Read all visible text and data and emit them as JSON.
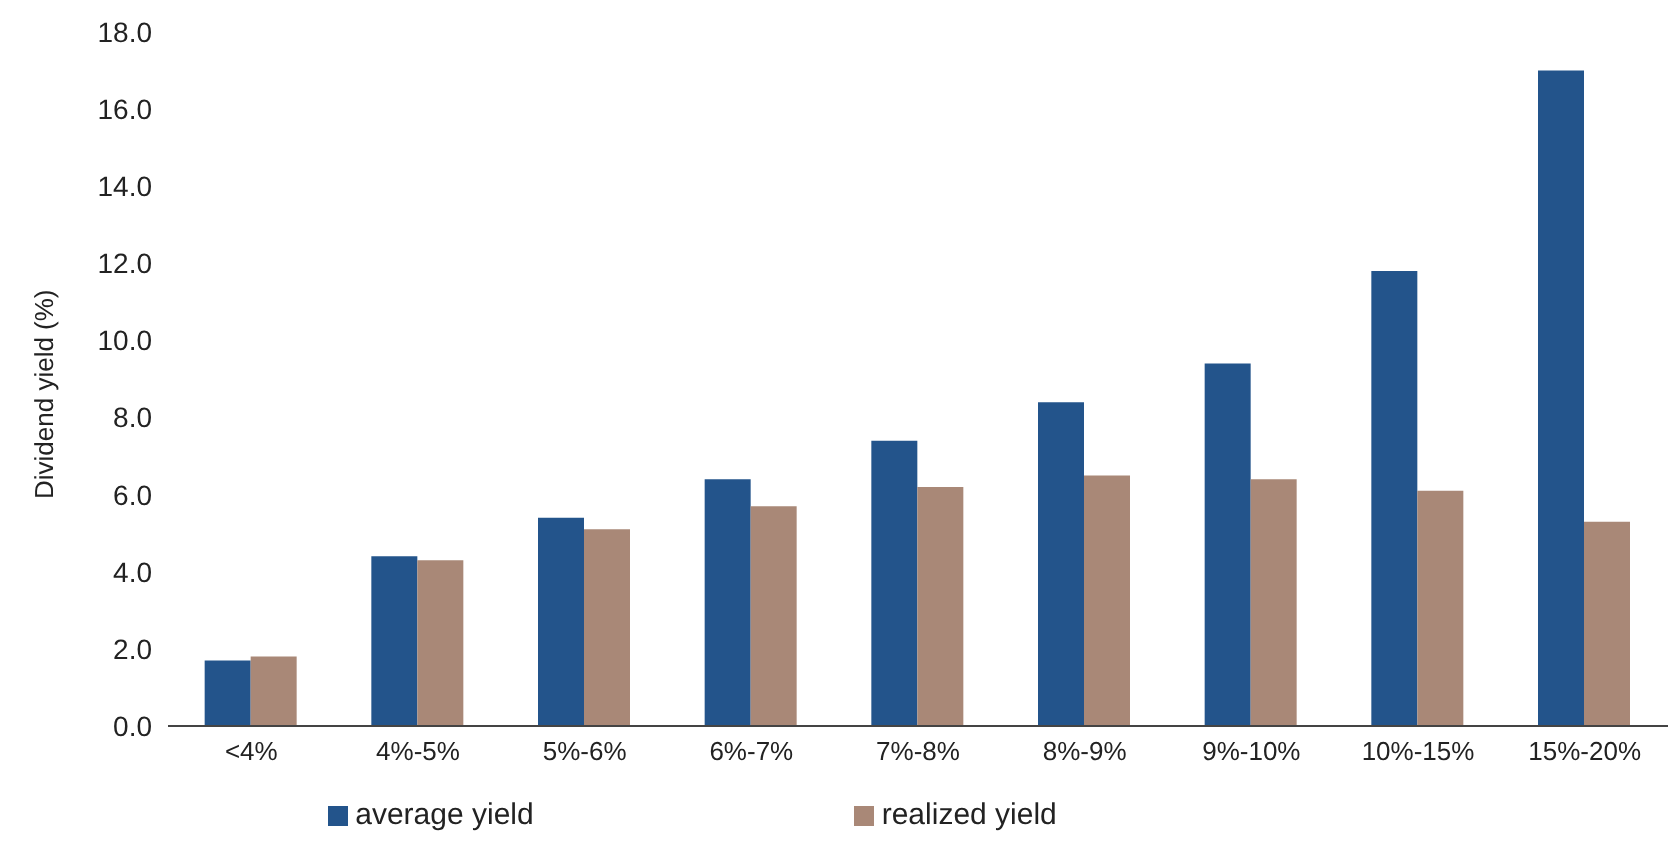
{
  "chart_data": {
    "type": "bar",
    "ylabel": "Dividend yield (%)",
    "categories": [
      "<4%",
      "4%-5%",
      "5%-6%",
      "6%-7%",
      "7%-8%",
      "8%-9%",
      "9%-10%",
      "10%-15%",
      "15%-20%"
    ],
    "series": [
      {
        "name": "average yield",
        "color": "#23548b",
        "values": [
          1.7,
          4.4,
          5.4,
          6.4,
          7.4,
          8.4,
          9.4,
          11.8,
          17.0
        ]
      },
      {
        "name": "realized yield",
        "color": "#a98877",
        "values": [
          1.8,
          4.3,
          5.1,
          5.7,
          6.2,
          6.5,
          6.4,
          6.1,
          5.3
        ]
      }
    ],
    "ylim": [
      0,
      18
    ],
    "yticks": [
      {
        "value": 0,
        "label": "0.0"
      },
      {
        "value": 2,
        "label": "2.0"
      },
      {
        "value": 4,
        "label": "4.0"
      },
      {
        "value": 6,
        "label": "6.0"
      },
      {
        "value": 8,
        "label": "8.0"
      },
      {
        "value": 10,
        "label": "10.0"
      },
      {
        "value": 12,
        "label": "12.0"
      },
      {
        "value": 14,
        "label": "14.0"
      },
      {
        "value": 16,
        "label": "16.0"
      },
      {
        "value": 18,
        "label": "18.0"
      }
    ],
    "grid": false,
    "legend": "bottom"
  }
}
